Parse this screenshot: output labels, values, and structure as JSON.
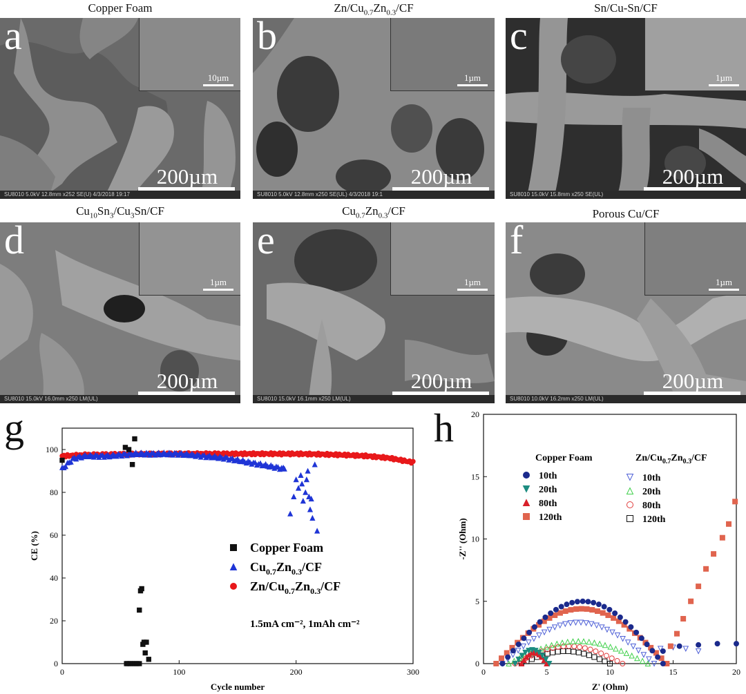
{
  "panels": [
    {
      "letter": "a",
      "title": "Copper Foam",
      "scale": "200µm",
      "inset_scale": "10µm",
      "info": "SU8010 5.0kV 12.8mm x252 SE(U) 4/3/2018 19:17",
      "info_right": "200um"
    },
    {
      "letter": "b",
      "title_main": "Zn/Cu",
      "title_sub1": "0.7",
      "title_mid": "Zn",
      "title_sub2": "0.3",
      "title_end": "/CF",
      "scale": "200µm",
      "inset_scale": "1µm",
      "info": "SU8010 5.0kV 12.8mm x250 SE(UL) 4/3/2018 19:1",
      "info_right": "200um"
    },
    {
      "letter": "c",
      "title": "Sn/Cu-Sn/CF",
      "scale": "200µm",
      "inset_scale": "1µm",
      "info": "SU8010 15.0kV 15.8mm x250 SE(UL)",
      "info_right": "200um"
    },
    {
      "letter": "d",
      "title_main": "Cu",
      "title_sub1": "10",
      "title_mid": "Sn",
      "title_sub2": "3",
      "title_end": "/Cu",
      "title_sub3": "3",
      "title_tail": "Sn/CF",
      "scale": "200µm",
      "inset_scale": "1µm",
      "info": "SU8010 15.0kV 16.0mm x250 LM(UL)",
      "info_right": "200um"
    },
    {
      "letter": "e",
      "title_main": "Cu",
      "title_sub1": "0.7",
      "title_mid": "Zn",
      "title_sub2": "0.3",
      "title_end": "/CF",
      "scale": "200µm",
      "inset_scale": "1µm",
      "info": "SU8010 15.0kV 16.1mm x250 LM(UL)",
      "info_right": "200um"
    },
    {
      "letter": "f",
      "title": "Porous Cu/CF",
      "scale": "200µm",
      "inset_scale": "1µm",
      "info": "SU8010 10.0kV 16.2mm x250 LM(UL)",
      "info_right": "200um"
    }
  ],
  "chart_g_letter": "g",
  "chart_h_letter": "h",
  "colors": {
    "black": "#111111",
    "blue": "#1f35d6",
    "red": "#e8181a",
    "navy": "#1b2a8c",
    "teal": "#1d8c80",
    "crimson": "#d8202a",
    "orange": "#e0644e",
    "lightblue": "#4d5fd6",
    "green": "#3fd04a",
    "redopen": "#e03a3a"
  },
  "chart_data": [
    {
      "type": "scatter",
      "xlabel": "Cycle number",
      "ylabel": "CE (%)",
      "xlim": [
        0,
        300
      ],
      "ylim": [
        0,
        110
      ],
      "xticks": [
        0,
        100,
        200,
        300
      ],
      "yticks": [
        0,
        20,
        40,
        60,
        80,
        100
      ],
      "legend_position": "center-right",
      "note": "1.5mA cm⁻², 1mAh cm⁻²",
      "series": [
        {
          "name": "Copper Foam",
          "marker": "square",
          "color": "#111111",
          "points": [
            [
              0,
              95
            ],
            [
              54,
              101
            ],
            [
              57,
              100
            ],
            [
              60,
              93
            ],
            [
              62,
              105
            ],
            [
              66,
              25
            ],
            [
              67,
              34
            ],
            [
              68,
              35
            ],
            [
              69,
              9
            ],
            [
              70,
              10
            ],
            [
              71,
              5
            ],
            [
              72,
              10
            ],
            [
              74,
              2
            ],
            [
              56,
              0
            ],
            [
              58,
              0
            ],
            [
              60,
              0
            ],
            [
              62,
              0
            ],
            [
              64,
              0
            ],
            [
              66,
              0
            ],
            [
              55,
              0
            ]
          ]
        },
        {
          "name": "Cu0.7Zn0.3/CF",
          "marker": "triangle",
          "color": "#1f35d6",
          "points": [
            [
              0,
              91
            ],
            [
              10,
              96
            ],
            [
              20,
              97
            ],
            [
              40,
              97
            ],
            [
              60,
              98
            ],
            [
              80,
              98
            ],
            [
              100,
              98
            ],
            [
              120,
              97
            ],
            [
              140,
              96
            ],
            [
              160,
              94
            ],
            [
              170,
              93
            ],
            [
              180,
              92
            ],
            [
              190,
              91
            ],
            [
              195,
              70
            ],
            [
              198,
              78
            ],
            [
              200,
              86
            ],
            [
              202,
              82
            ],
            [
              204,
              88
            ],
            [
              206,
              76
            ],
            [
              208,
              80
            ],
            [
              210,
              90
            ],
            [
              212,
              72
            ],
            [
              214,
              68
            ],
            [
              216,
              93
            ],
            [
              218,
              62
            ],
            [
              211,
              78
            ],
            [
              205,
              84
            ],
            [
              209,
              86
            ],
            [
              213,
              77
            ]
          ]
        },
        {
          "name": "Zn/Cu0.7Zn0.3/CF",
          "marker": "circle",
          "color": "#e8181a",
          "points": [
            [
              0,
              97
            ],
            [
              20,
              97.5
            ],
            [
              50,
              97.8
            ],
            [
              100,
              98
            ],
            [
              150,
              98
            ],
            [
              200,
              98
            ],
            [
              220,
              97.8
            ],
            [
              240,
              97.5
            ],
            [
              260,
              97
            ],
            [
              280,
              96
            ],
            [
              290,
              95
            ],
            [
              300,
              94
            ]
          ]
        }
      ]
    },
    {
      "type": "scatter",
      "xlabel": "Z' (Ohm)",
      "ylabel": "-Z'' (Ohm)",
      "xlim": [
        0,
        20
      ],
      "ylim": [
        0,
        20
      ],
      "xticks": [
        0,
        5,
        10,
        15,
        20
      ],
      "yticks": [
        0,
        5,
        10,
        15,
        20
      ],
      "legend_groups": [
        {
          "title": "Copper Foam",
          "entries": [
            {
              "name": "10th",
              "marker": "filled-circle",
              "color": "#1b2a8c"
            },
            {
              "name": "20th",
              "marker": "filled-triangle-down",
              "color": "#1d8c80"
            },
            {
              "name": "80th",
              "marker": "filled-triangle-up",
              "color": "#d8202a"
            },
            {
              "name": "120th",
              "marker": "filled-square",
              "color": "#e0644e"
            }
          ]
        },
        {
          "title_main": "Zn/Cu",
          "title_sub1": "0.7",
          "title_mid": "Zn",
          "title_sub2": "0.3",
          "title_end": "/CF",
          "entries": [
            {
              "name": "10th",
              "marker": "open-triangle-down",
              "color": "#4d5fd6"
            },
            {
              "name": "20th",
              "marker": "open-triangle-up",
              "color": "#3fd04a"
            },
            {
              "name": "80th",
              "marker": "open-circle",
              "color": "#e03a3a"
            },
            {
              "name": "120th",
              "marker": "open-square",
              "color": "#111111"
            }
          ]
        }
      ],
      "series": [
        {
          "name": "Copper Foam 10th",
          "marker": "filled-circle",
          "color": "#1b2a8c",
          "arc": {
            "start": 1.5,
            "end": 14.2,
            "peak": 5.0
          },
          "tail": [
            [
              14.2,
              1.0
            ],
            [
              15.5,
              1.4
            ],
            [
              17,
              1.5
            ],
            [
              18.5,
              1.6
            ],
            [
              20,
              1.6
            ]
          ]
        },
        {
          "name": "Copper Foam 120th",
          "marker": "filled-square",
          "color": "#e0644e",
          "arc": {
            "start": 1.0,
            "end": 14.5,
            "peak": 4.4
          },
          "tail": [
            [
              14.8,
              1.4
            ],
            [
              15.3,
              2.4
            ],
            [
              15.8,
              3.6
            ],
            [
              16.4,
              5.0
            ],
            [
              17,
              6.2
            ],
            [
              17.6,
              7.6
            ],
            [
              18.2,
              8.8
            ],
            [
              18.9,
              10.1
            ],
            [
              19.4,
              11.2
            ],
            [
              19.9,
              13.0
            ]
          ]
        },
        {
          "name": "Copper Foam 20th",
          "marker": "filled-triangle-down",
          "color": "#1d8c80",
          "arc": {
            "start": 2.5,
            "end": 5.2,
            "peak": 1.1
          },
          "tail": []
        },
        {
          "name": "Copper Foam 80th",
          "marker": "filled-triangle-up",
          "color": "#d8202a",
          "arc": {
            "start": 3.0,
            "end": 5.0,
            "peak": 0.9
          },
          "tail": []
        },
        {
          "name": "Zn/Cu0.7Zn0.3/CF 10th",
          "marker": "open-triangle-down",
          "color": "#4d5fd6",
          "arc": {
            "start": 1.5,
            "end": 13.5,
            "peak": 3.3
          },
          "tail": [
            [
              14,
              1.2
            ],
            [
              15,
              1.3
            ],
            [
              16,
              1.2
            ],
            [
              17,
              1.0
            ]
          ]
        },
        {
          "name": "Zn/Cu0.7Zn0.3/CF 20th",
          "marker": "open-triangle-up",
          "color": "#3fd04a",
          "arc": {
            "start": 2.0,
            "end": 13.0,
            "peak": 1.8
          },
          "tail": []
        },
        {
          "name": "Zn/Cu0.7Zn0.3/CF 80th",
          "marker": "open-circle",
          "color": "#e03a3a",
          "arc": {
            "start": 2.5,
            "end": 11.0,
            "peak": 1.4
          },
          "tail": []
        },
        {
          "name": "Zn/Cu0.7Zn0.3/CF 120th",
          "marker": "open-square",
          "color": "#111111",
          "arc": {
            "start": 3.0,
            "end": 10.0,
            "peak": 1.0
          },
          "tail": []
        }
      ]
    }
  ]
}
